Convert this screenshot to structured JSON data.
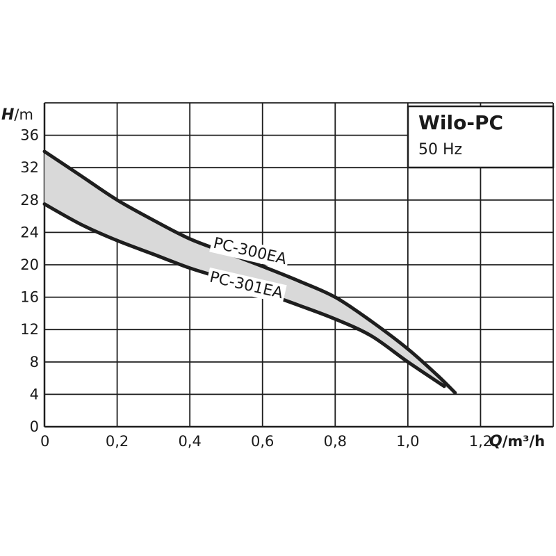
{
  "chart_data": {
    "type": "line",
    "title": "Wilo-PC",
    "subtitle": "50 Hz",
    "xlabel": {
      "symbol": "Q",
      "unit": "/m³/h"
    },
    "ylabel": {
      "symbol": "H",
      "unit": "/m"
    },
    "xlim": [
      0,
      1.4
    ],
    "ylim": [
      0,
      40
    ],
    "x_ticks": [
      0,
      0.2,
      0.4,
      0.6,
      0.8,
      1.0,
      1.2
    ],
    "x_tick_labels": [
      "0",
      "0,2",
      "0,4",
      "0,6",
      "0,8",
      "1,0",
      "1,2"
    ],
    "y_ticks": [
      0,
      4,
      8,
      12,
      16,
      20,
      24,
      28,
      32,
      36
    ],
    "y_tick_labels": [
      "0",
      "4",
      "8",
      "12",
      "16",
      "20",
      "24",
      "28",
      "32",
      "36"
    ],
    "grid": true,
    "fill_between_series": true,
    "fill_color": "#d9d9d9",
    "line_color": "#1e1e1e",
    "legend_placement": "top-right",
    "series": [
      {
        "name": "PC-300EA",
        "x": [
          0,
          0.1,
          0.2,
          0.3,
          0.4,
          0.5,
          0.6,
          0.7,
          0.8,
          0.9,
          1.0,
          1.08,
          1.13
        ],
        "y": [
          34,
          31,
          28,
          25.5,
          23.2,
          21.5,
          19.8,
          18,
          16,
          13,
          9.6,
          6.4,
          4.2
        ]
      },
      {
        "name": "PC-301EA",
        "x": [
          0,
          0.1,
          0.2,
          0.3,
          0.4,
          0.5,
          0.6,
          0.7,
          0.8,
          0.9,
          1.0,
          1.1
        ],
        "y": [
          27.5,
          25,
          23,
          21.3,
          19.6,
          18.2,
          16.6,
          15,
          13.3,
          11.2,
          8,
          5
        ]
      }
    ]
  }
}
